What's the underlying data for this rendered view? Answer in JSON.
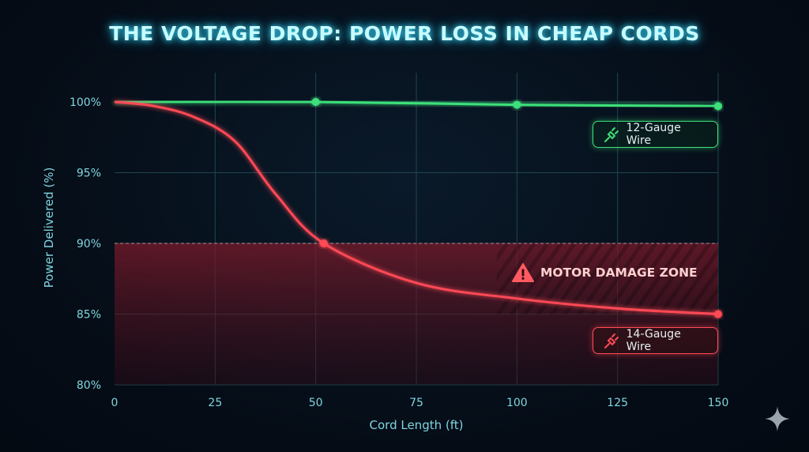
{
  "chart_data": {
    "type": "line",
    "title": "THE VOLTAGE DROP: POWER LOSS IN CHEAP CORDS",
    "xlabel": "Cord Length (ft)",
    "ylabel": "Power Delivered (%)",
    "xlim": [
      0,
      150
    ],
    "ylim": [
      80,
      100
    ],
    "x_ticks": [
      "0",
      "25",
      "50",
      "75",
      "100",
      "125",
      "150"
    ],
    "y_ticks": [
      "80%",
      "85%",
      "90%",
      "95%",
      "100%"
    ],
    "grid": true,
    "series": [
      {
        "name": "12-Gauge Wire",
        "color": "#3ee07a",
        "x": [
          0,
          50,
          100,
          150
        ],
        "y": [
          100,
          100,
          99.8,
          99.7
        ],
        "markers_at": [
          50,
          100,
          150
        ]
      },
      {
        "name": "14-Gauge Wire",
        "color": "#ff4a55",
        "x": [
          0,
          10,
          20,
          30,
          40,
          52,
          75,
          100,
          125,
          150
        ],
        "y": [
          100,
          99.7,
          98.9,
          97.2,
          93.5,
          90,
          87.2,
          86.1,
          85.4,
          85
        ],
        "markers_at": [
          52,
          150
        ]
      }
    ],
    "annotations": [
      {
        "label": "MOTOR DAMAGE ZONE",
        "y_range": [
          80,
          90
        ],
        "icon": "warning-triangle-icon",
        "color": "#ff4a55"
      }
    ],
    "legend_icon": "plug-icon"
  },
  "colors": {
    "axis": "#4fd8e0",
    "background": "#050d18"
  }
}
